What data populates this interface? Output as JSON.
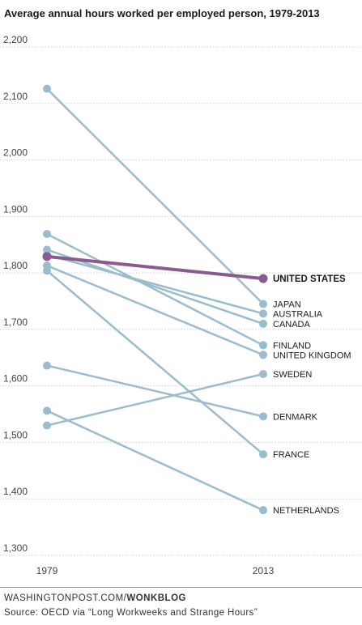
{
  "header": {
    "title": "Average annual hours worked per employed person, 1979-2013"
  },
  "footer": {
    "credit_main": "WASHINGTONPOST.COM/",
    "credit_bold": "WONKBLOG",
    "source": "Source: OECD via “Long Workweeks and Strange Hours”"
  },
  "colors": {
    "series": "#9bbccf",
    "highlight": "#8b5a8e",
    "grid": "#d0d0d0"
  },
  "chart_data": {
    "type": "line",
    "title": "Average annual hours worked per employed person, 1979-2013",
    "x": [
      "1979",
      "2013"
    ],
    "ylim": [
      1300,
      2200
    ],
    "yticks": [
      "1,300",
      "1,400",
      "1,500",
      "1,600",
      "1,700",
      "1,800",
      "1,900",
      "2,000",
      "2,100",
      "2,200"
    ],
    "grid": true,
    "series": [
      {
        "name": "UNITED STATES",
        "values": [
          1829,
          1790
        ],
        "highlight": true
      },
      {
        "name": "JAPAN",
        "values": [
          2126,
          1745
        ]
      },
      {
        "name": "AUSTRALIA",
        "values": [
          1832,
          1728
        ]
      },
      {
        "name": "CANADA",
        "values": [
          1841,
          1710
        ]
      },
      {
        "name": "FINLAND",
        "values": [
          1869,
          1672
        ]
      },
      {
        "name": "UNITED KINGDOM",
        "values": [
          1813,
          1655
        ]
      },
      {
        "name": "SWEDEN",
        "values": [
          1530,
          1621
        ]
      },
      {
        "name": "DENMARK",
        "values": [
          1636,
          1546
        ]
      },
      {
        "name": "FRANCE",
        "values": [
          1804,
          1479
        ]
      },
      {
        "name": "NETHERLANDS",
        "values": [
          1556,
          1380
        ]
      }
    ]
  }
}
